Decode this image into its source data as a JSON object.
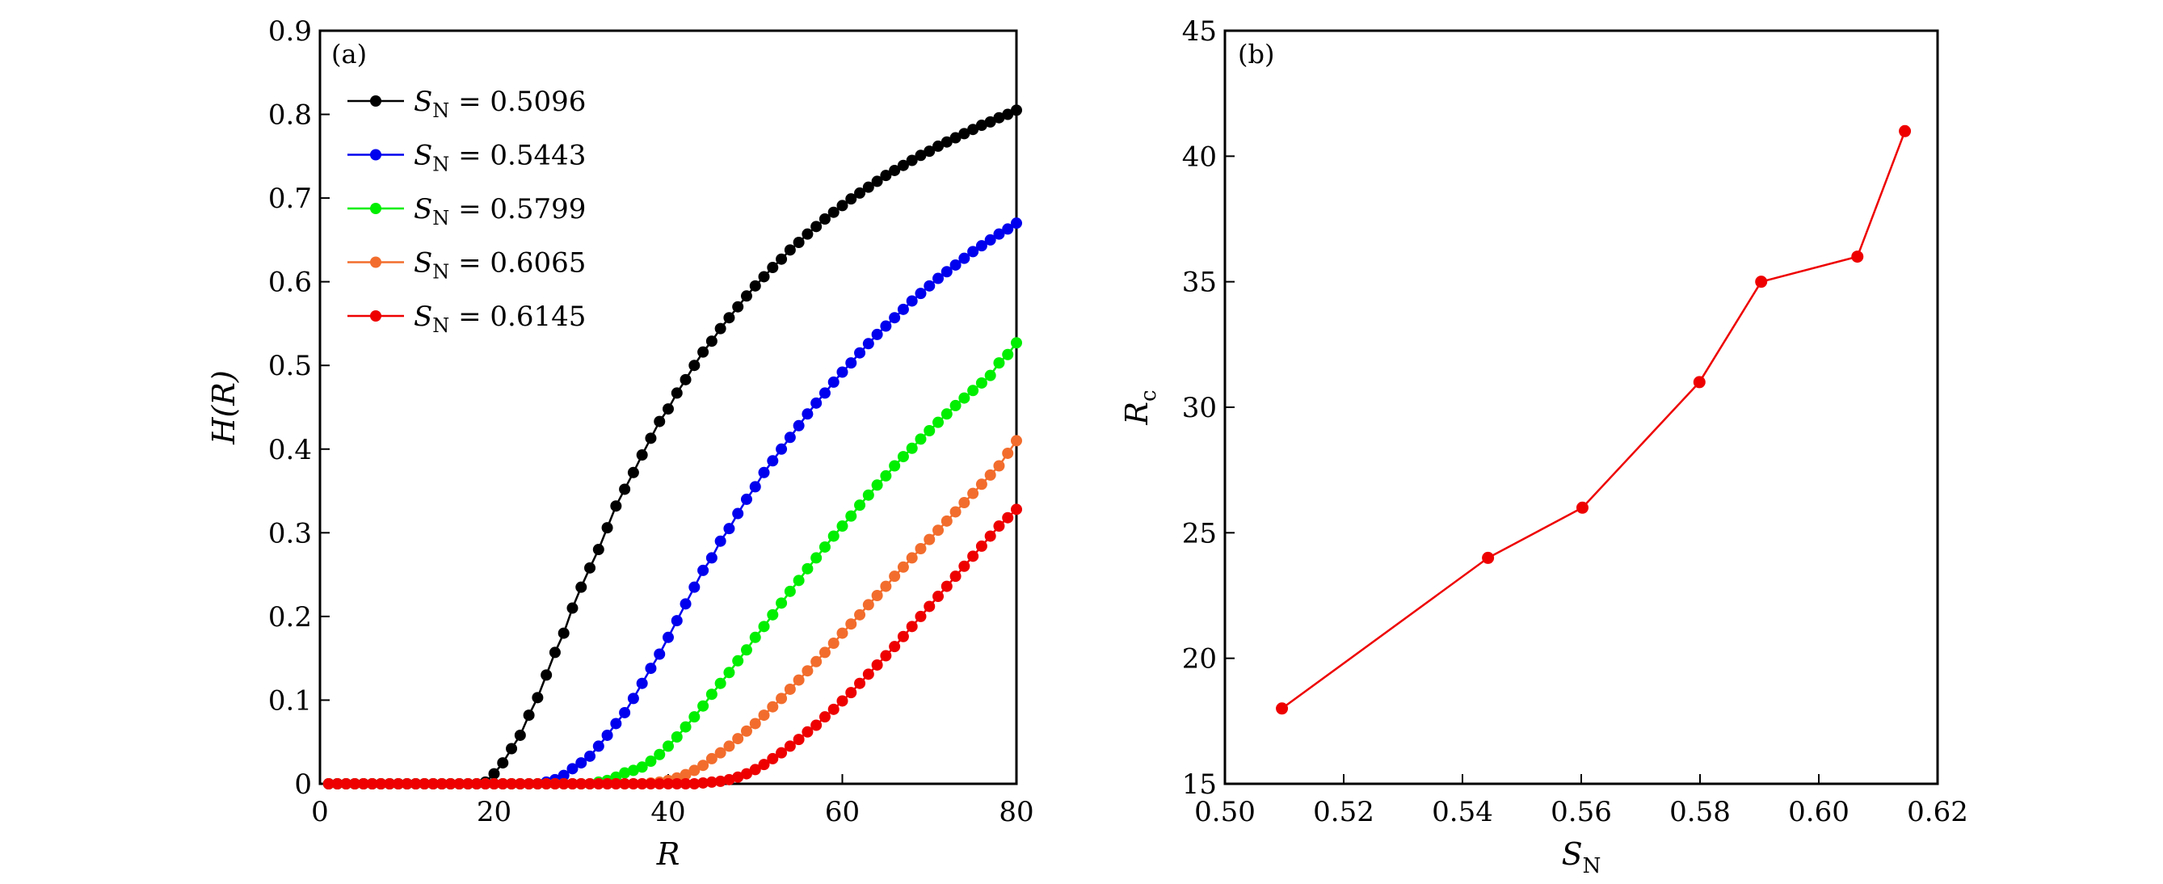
{
  "chart_data": [
    {
      "type": "line",
      "panel_label": "(a)",
      "xlabel": "R",
      "ylabel": "H(R)",
      "xlim": [
        0,
        80
      ],
      "ylim": [
        0,
        0.9
      ],
      "xticks": [
        "0",
        "20",
        "40",
        "60",
        "80"
      ],
      "yticks": [
        "0",
        "0.1",
        "0.2",
        "0.3",
        "0.4",
        "0.5",
        "0.6",
        "0.7",
        "0.8",
        "0.9"
      ],
      "grid": false,
      "legend_position": "top-left",
      "x_start": 1,
      "x_step": 1,
      "series": [
        {
          "name": "S_N = 0.5096",
          "sym": "S",
          "sub": "N",
          "eq": " = 0.5096",
          "color": "#000000",
          "values": [
            0,
            0,
            0,
            0,
            0,
            0,
            0,
            0,
            0,
            0,
            0,
            0,
            0,
            0,
            0,
            0,
            0,
            0,
            0.002,
            0.012,
            0.025,
            0.042,
            0.058,
            0.082,
            0.103,
            0.13,
            0.157,
            0.18,
            0.21,
            0.235,
            0.258,
            0.28,
            0.306,
            0.332,
            0.352,
            0.372,
            0.393,
            0.413,
            0.433,
            0.448,
            0.467,
            0.483,
            0.5,
            0.516,
            0.529,
            0.544,
            0.557,
            0.57,
            0.583,
            0.595,
            0.606,
            0.617,
            0.627,
            0.638,
            0.647,
            0.657,
            0.666,
            0.675,
            0.683,
            0.691,
            0.699,
            0.706,
            0.713,
            0.72,
            0.727,
            0.733,
            0.739,
            0.745,
            0.751,
            0.756,
            0.762,
            0.767,
            0.772,
            0.777,
            0.782,
            0.787,
            0.791,
            0.796,
            0.8,
            0.805
          ]
        },
        {
          "name": "S_N = 0.5443",
          "sym": "S",
          "sub": "N",
          "eq": " = 0.5443",
          "color": "#0000ee",
          "values": [
            0,
            0,
            0,
            0,
            0,
            0,
            0,
            0,
            0,
            0,
            0,
            0,
            0,
            0,
            0,
            0,
            0,
            0,
            0,
            0,
            0,
            0,
            0,
            0,
            0,
            0.002,
            0.005,
            0.01,
            0.018,
            0.025,
            0.033,
            0.045,
            0.058,
            0.072,
            0.085,
            0.102,
            0.12,
            0.138,
            0.155,
            0.175,
            0.195,
            0.215,
            0.235,
            0.255,
            0.27,
            0.29,
            0.305,
            0.323,
            0.34,
            0.355,
            0.372,
            0.386,
            0.4,
            0.414,
            0.428,
            0.442,
            0.455,
            0.467,
            0.48,
            0.492,
            0.503,
            0.515,
            0.526,
            0.537,
            0.547,
            0.557,
            0.567,
            0.577,
            0.586,
            0.595,
            0.604,
            0.612,
            0.62,
            0.628,
            0.636,
            0.643,
            0.65,
            0.657,
            0.663,
            0.67
          ]
        },
        {
          "name": "S_N = 0.5799",
          "sym": "S",
          "sub": "N",
          "eq": " = 0.5799",
          "color": "#00ee00",
          "values": [
            0,
            0,
            0,
            0,
            0,
            0,
            0,
            0,
            0,
            0,
            0,
            0,
            0,
            0,
            0,
            0,
            0,
            0,
            0,
            0,
            0,
            0,
            0,
            0,
            0,
            0,
            0,
            0,
            0,
            0,
            0,
            0.002,
            0.004,
            0.008,
            0.013,
            0.016,
            0.02,
            0.027,
            0.035,
            0.045,
            0.056,
            0.068,
            0.08,
            0.093,
            0.107,
            0.12,
            0.133,
            0.147,
            0.16,
            0.175,
            0.188,
            0.202,
            0.216,
            0.23,
            0.243,
            0.257,
            0.27,
            0.283,
            0.296,
            0.308,
            0.32,
            0.333,
            0.345,
            0.357,
            0.368,
            0.38,
            0.391,
            0.401,
            0.412,
            0.422,
            0.432,
            0.442,
            0.452,
            0.461,
            0.47,
            0.479,
            0.488,
            0.503,
            0.513,
            0.527
          ]
        },
        {
          "name": "S_N = 0.6065",
          "sym": "S",
          "sub": "N",
          "eq": " = 0.6065",
          "color": "#f26d2d",
          "values": [
            0,
            0,
            0,
            0,
            0,
            0,
            0,
            0,
            0,
            0,
            0,
            0,
            0,
            0,
            0,
            0,
            0,
            0,
            0,
            0,
            0,
            0,
            0,
            0,
            0,
            0,
            0,
            0,
            0,
            0,
            0,
            0,
            0,
            0,
            0,
            0,
            0,
            0.001,
            0.002,
            0.004,
            0.007,
            0.011,
            0.016,
            0.022,
            0.03,
            0.037,
            0.045,
            0.054,
            0.063,
            0.072,
            0.082,
            0.092,
            0.102,
            0.113,
            0.124,
            0.135,
            0.146,
            0.157,
            0.168,
            0.18,
            0.191,
            0.202,
            0.214,
            0.225,
            0.236,
            0.248,
            0.259,
            0.27,
            0.281,
            0.292,
            0.303,
            0.314,
            0.325,
            0.336,
            0.347,
            0.358,
            0.369,
            0.38,
            0.395,
            0.41
          ]
        },
        {
          "name": "S_N = 0.6145",
          "sym": "S",
          "sub": "N",
          "eq": " = 0.6145",
          "color": "#ee0000",
          "values": [
            0,
            0,
            0,
            0,
            0,
            0,
            0,
            0,
            0,
            0,
            0,
            0,
            0,
            0,
            0,
            0,
            0,
            0,
            0,
            0,
            0,
            0,
            0,
            0,
            0,
            0,
            0,
            0,
            0,
            0,
            0,
            0,
            0,
            0,
            0,
            0,
            0,
            0,
            0,
            0,
            0,
            0,
            0,
            0.001,
            0.002,
            0.003,
            0.005,
            0.008,
            0.012,
            0.017,
            0.023,
            0.03,
            0.037,
            0.045,
            0.053,
            0.062,
            0.07,
            0.08,
            0.089,
            0.099,
            0.109,
            0.12,
            0.131,
            0.142,
            0.153,
            0.164,
            0.176,
            0.188,
            0.2,
            0.212,
            0.224,
            0.236,
            0.248,
            0.26,
            0.272,
            0.284,
            0.296,
            0.308,
            0.318,
            0.328
          ]
        }
      ]
    },
    {
      "type": "line",
      "panel_label": "(b)",
      "xlabel_sym": "S",
      "xlabel_sub": "N",
      "ylabel_sym": "R",
      "ylabel_sub": "c",
      "xlim": [
        0.5,
        0.62
      ],
      "ylim": [
        15,
        45
      ],
      "xticks": [
        "0.50",
        "0.52",
        "0.54",
        "0.56",
        "0.58",
        "0.60",
        "0.62"
      ],
      "yticks": [
        "15",
        "20",
        "25",
        "30",
        "35",
        "40",
        "45"
      ],
      "grid": false,
      "color": "#ee0000",
      "x": [
        0.5096,
        0.5443,
        0.5602,
        0.5799,
        0.5903,
        0.6065,
        0.6145
      ],
      "y": [
        18,
        24,
        26,
        31,
        35,
        36,
        41
      ]
    }
  ]
}
